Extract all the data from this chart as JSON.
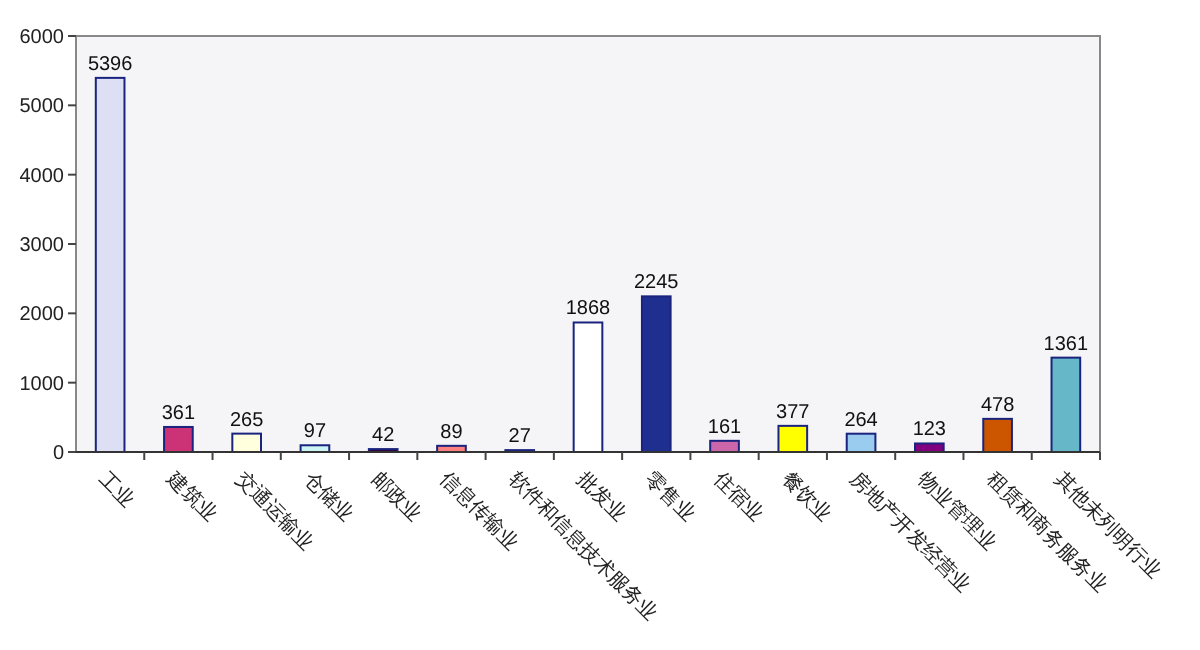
{
  "chart_data": {
    "type": "bar",
    "categories": [
      "工业",
      "建筑业",
      "交通运输业",
      "仓储业",
      "邮政业",
      "信息传输业",
      "软件和信息技术服务业",
      "批发业",
      "零售业",
      "住宿业",
      "餐饮业",
      "房地产开发经营业",
      "物业管理业",
      "租赁和商务服务业",
      "其他未列明行业"
    ],
    "values": [
      5396,
      361,
      265,
      97,
      42,
      89,
      27,
      1868,
      2245,
      161,
      377,
      264,
      123,
      478,
      1361
    ],
    "colors": [
      "#dde0f4",
      "#cc3377",
      "#ffffdd",
      "#ccf4f4",
      "#330033",
      "#ff8080",
      "#222222",
      "#ffffff",
      "#1f2f8f",
      "#cc66aa",
      "#ffff00",
      "#99ccee",
      "#800080",
      "#cc5500",
      "#66b8c8"
    ],
    "ylim": [
      0,
      6000
    ],
    "yticks": [
      0,
      1000,
      2000,
      3000,
      4000,
      5000,
      6000
    ],
    "data_labels": true
  }
}
